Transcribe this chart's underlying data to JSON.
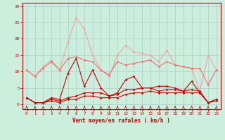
{
  "x": [
    0,
    1,
    2,
    3,
    4,
    5,
    6,
    7,
    8,
    9,
    10,
    11,
    12,
    13,
    14,
    15,
    16,
    17,
    18,
    19,
    20,
    21,
    22,
    23
  ],
  "line1": [
    10.5,
    8.5,
    11.5,
    13.5,
    10.5,
    19.0,
    26.5,
    23.0,
    15.0,
    10.5,
    8.5,
    15.0,
    18.0,
    16.0,
    15.5,
    15.0,
    13.0,
    16.5,
    12.0,
    11.5,
    11.0,
    4.0,
    15.0,
    10.5
  ],
  "line2": [
    10.5,
    8.5,
    11.0,
    13.0,
    10.5,
    14.0,
    14.5,
    13.5,
    13.0,
    10.5,
    9.0,
    13.0,
    12.0,
    12.5,
    13.0,
    13.5,
    11.5,
    13.0,
    12.0,
    11.5,
    11.0,
    11.0,
    6.0,
    10.5
  ],
  "line3": [
    2.0,
    0.5,
    0.5,
    2.0,
    1.5,
    9.5,
    14.0,
    5.5,
    10.5,
    5.0,
    2.5,
    3.5,
    7.5,
    8.5,
    5.0,
    5.0,
    5.5,
    5.5,
    5.0,
    4.0,
    7.0,
    3.5,
    0.5,
    1.5
  ],
  "line4": [
    2.0,
    0.5,
    0.5,
    1.5,
    1.0,
    2.0,
    2.5,
    3.5,
    3.5,
    3.5,
    2.5,
    3.0,
    4.5,
    4.5,
    5.0,
    5.0,
    4.0,
    4.5,
    4.5,
    4.0,
    4.5,
    4.0,
    0.5,
    1.5
  ],
  "line5": [
    2.0,
    0.5,
    0.5,
    1.0,
    0.5,
    1.5,
    1.5,
    2.5,
    2.5,
    2.0,
    2.0,
    2.0,
    3.0,
    3.5,
    3.5,
    4.0,
    3.5,
    3.5,
    3.5,
    3.5,
    3.5,
    3.5,
    0.5,
    1.0
  ],
  "color_light": "#f4a0a0",
  "color_medium": "#f07070",
  "color_dark": "#cc0000",
  "bg_color": "#cceedd",
  "grid_color": "#aacccc",
  "axis_color": "#cc0000",
  "text_color": "#cc0000",
  "xlabel": "Vent moyen/en rafales ( km/h )",
  "yticks": [
    0,
    5,
    10,
    15,
    20,
    25,
    30
  ],
  "ylim": [
    -1.5,
    31
  ],
  "xlim": [
    -0.5,
    23.5
  ]
}
